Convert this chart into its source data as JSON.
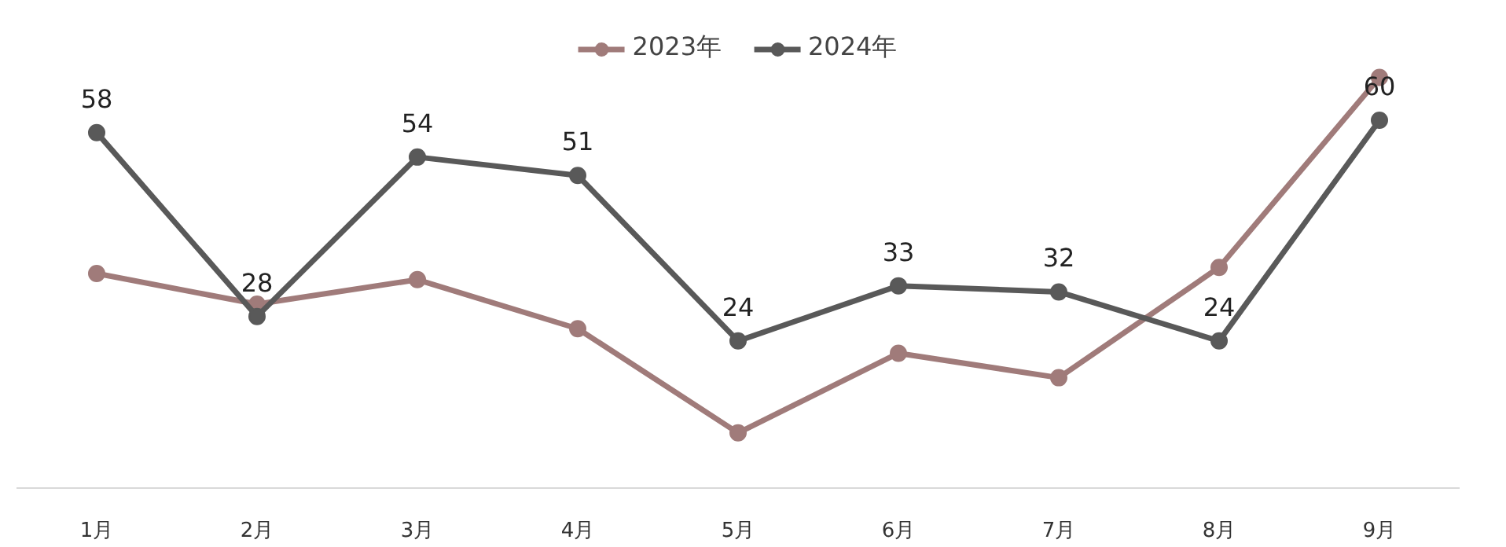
{
  "chart_data": {
    "type": "line",
    "categories": [
      "1月",
      "2月",
      "3月",
      "4月",
      "5月",
      "6月",
      "7月",
      "8月",
      "9月"
    ],
    "series": [
      {
        "name": "2023年",
        "color": "#a07b7a",
        "values": [
          35,
          30,
          34,
          26,
          9,
          22,
          18,
          36,
          67
        ]
      },
      {
        "name": "2024年",
        "color": "#595959",
        "values": [
          58,
          28,
          54,
          51,
          24,
          33,
          32,
          24,
          60
        ],
        "value_labels": [
          "58",
          "28",
          "54",
          "51",
          "24",
          "33",
          "32",
          "24",
          "60"
        ]
      }
    ],
    "tick_labels": "x",
    "grid": false,
    "legend": "top",
    "marker": "circle",
    "line_style": "solid"
  }
}
